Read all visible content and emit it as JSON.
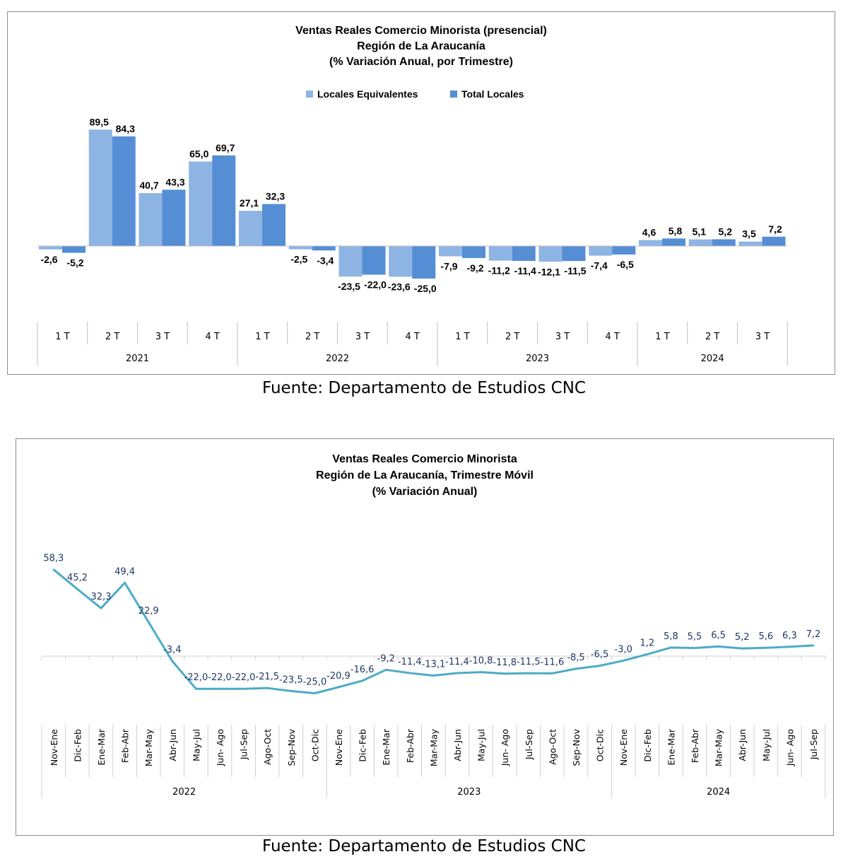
{
  "chart_data": [
    {
      "type": "bar",
      "title": [
        "Ventas Reales Comercio Minorista  (presencial)",
        "Región de La Araucanía",
        "(% Variación Anual, por Trimestre)"
      ],
      "categories": [
        "1 T",
        "2 T",
        "3 T",
        "4 T",
        "1 T",
        "2 T",
        "3 T",
        "4 T",
        "1 T",
        "2 T",
        "3 T",
        "4 T",
        "1 T",
        "2 T",
        "3 T"
      ],
      "year_groups": [
        {
          "label": "2021",
          "count": 4
        },
        {
          "label": "2022",
          "count": 4
        },
        {
          "label": "2023",
          "count": 4
        },
        {
          "label": "2024",
          "count": 3
        }
      ],
      "series": [
        {
          "name": "Locales Equivalentes",
          "color": "#8eb4e3",
          "values": [
            -2.6,
            89.5,
            40.7,
            65.0,
            27.1,
            -2.5,
            -23.5,
            -23.6,
            -7.9,
            -11.2,
            -12.1,
            -7.4,
            4.6,
            5.1,
            3.5
          ],
          "labels": [
            "-2,6",
            "89,5",
            "40,7",
            "65,0",
            "27,1",
            "-2,5",
            "-23,5",
            "-23,6",
            "-7,9",
            "-11,2",
            "-12,1",
            "-7,4",
            "4,6",
            "5,1",
            "3,5"
          ]
        },
        {
          "name": "Total Locales",
          "color": "#558ed5",
          "values": [
            -5.2,
            84.3,
            43.3,
            69.7,
            32.3,
            -3.4,
            -22.0,
            -25.0,
            -9.2,
            -11.4,
            -11.5,
            -6.5,
            5.8,
            5.2,
            7.2
          ],
          "labels": [
            "-5,2",
            "84,3",
            "43,3",
            "69,7",
            "32,3",
            "-3,4",
            "-22,0",
            "-25,0",
            "-9,2",
            "-11,4",
            "-11,5",
            "-6,5",
            "5,8",
            "5,2",
            "7,2"
          ]
        }
      ],
      "grid": false,
      "legend_position": "top"
    },
    {
      "type": "line",
      "title": [
        "Ventas Reales Comercio Minorista",
        "Región de La Araucanía, Trimestre Móvil",
        "(% Variación Anual)"
      ],
      "categories": [
        "Nov-Ene",
        "Dic-Feb",
        "Ene-Mar",
        "Feb-Abr",
        "Mar-May",
        "Abr-Jun",
        "May-Jul",
        "Jun- Ago",
        "Jul-Sep",
        "Ago-Oct",
        "Sep-Nov",
        "Oct-Dic",
        "Nov-Ene",
        "Dic-Feb",
        "Ene-Mar",
        "Feb-Abr",
        "Mar-May",
        "Abr-Jun",
        "May-Jul",
        "Jun- Ago",
        "Jul-Sep",
        "Ago-Oct",
        "Sep-Nov",
        "Oct-Dic",
        "Nov-Ene",
        "Dic-Feb",
        "Ene-Mar",
        "Feb-Abr",
        "Mar-May",
        "Abr-Jun",
        "May-Jul",
        "Jun- Ago",
        "Jul-Sep"
      ],
      "year_groups": [
        {
          "label": "2022",
          "count": 12
        },
        {
          "label": "2023",
          "count": 12
        },
        {
          "label": "2024",
          "count": 9
        }
      ],
      "series": [
        {
          "color": "#4bacc6",
          "values": [
            58.3,
            45.2,
            32.3,
            49.4,
            22.9,
            -3.4,
            -22.0,
            -22.0,
            -22.0,
            -21.5,
            -23.5,
            -25.0,
            -20.9,
            -16.6,
            -9.2,
            -11.4,
            -13.1,
            -11.4,
            -10.8,
            -11.8,
            -11.5,
            -11.6,
            -8.5,
            -6.5,
            -3.0,
            1.2,
            5.8,
            5.5,
            6.5,
            5.2,
            5.6,
            6.3,
            7.2
          ],
          "labels": [
            "58,3",
            "45,2",
            "32,3",
            "49,4",
            "22,9",
            "-3,4",
            "-22,0",
            "-22,0",
            "-22,0",
            "-21,5",
            "-23,5",
            "-25,0",
            "-20,9",
            "-16,6",
            "-9,2",
            "-11,4",
            "-13,1",
            "-11,4",
            "-10,8",
            "-11,8",
            "-11,5",
            "-11,6",
            "-8,5",
            "-6,5",
            "-3,0",
            "1,2",
            "5,8",
            "5,5",
            "6,5",
            "5,2",
            "5,6",
            "6,3",
            "7,2"
          ]
        }
      ],
      "grid": false
    }
  ],
  "sources": [
    "Fuente: Departamento de Estudios CNC",
    "Fuente: Departamento de Estudios CNC"
  ]
}
